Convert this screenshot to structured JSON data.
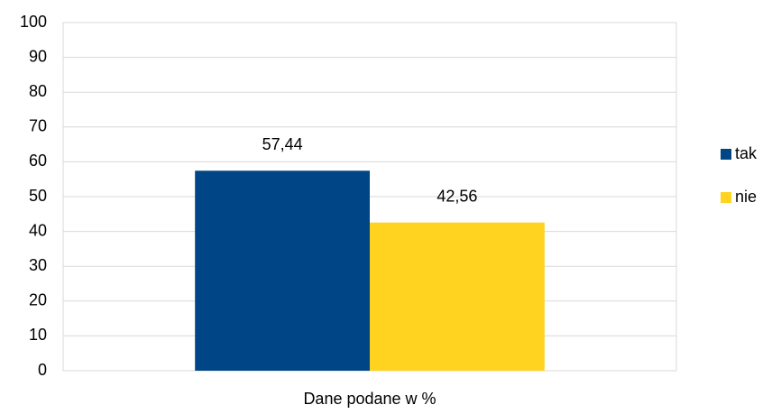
{
  "chart_data": {
    "type": "bar",
    "categories": [
      "Dane podane w %"
    ],
    "series": [
      {
        "name": "tak",
        "color": "#004586",
        "values": [
          57.44
        ],
        "value_labels": [
          "57,44"
        ]
      },
      {
        "name": "nie",
        "color": "#ffd320",
        "values": [
          42.56
        ],
        "value_labels": [
          "42,56"
        ]
      }
    ],
    "ylim": [
      0,
      100
    ],
    "yticks": [
      0,
      10,
      20,
      30,
      40,
      50,
      60,
      70,
      80,
      90,
      100
    ],
    "grid": true,
    "legend": "right"
  }
}
